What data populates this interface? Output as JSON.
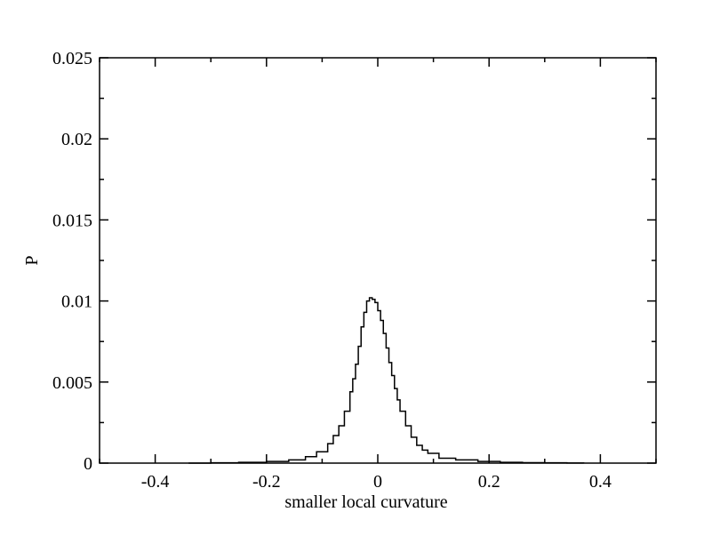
{
  "chart_data": {
    "type": "line",
    "title": "",
    "xlabel": "smaller local curvature",
    "ylabel": "P",
    "xlim": [
      -0.5,
      0.5
    ],
    "ylim": [
      0,
      0.025
    ],
    "x_ticks": [
      "-0.4",
      "-0.2",
      "0",
      "0.2",
      "0.4"
    ],
    "x_tick_values": [
      -0.4,
      -0.2,
      0,
      0.2,
      0.4
    ],
    "y_ticks": [
      "0",
      "0.005",
      "0.01",
      "0.015",
      "0.02",
      "0.025"
    ],
    "y_tick_values": [
      0,
      0.005,
      0.01,
      0.015,
      0.02,
      0.025
    ],
    "grid": false,
    "legend": "none",
    "series": [
      {
        "color": "#000000",
        "x": [
          -0.34,
          -0.3,
          -0.25,
          -0.2,
          -0.16,
          -0.13,
          -0.11,
          -0.09,
          -0.08,
          -0.07,
          -0.06,
          -0.05,
          -0.045,
          -0.04,
          -0.035,
          -0.03,
          -0.025,
          -0.02,
          -0.015,
          -0.01,
          -0.005,
          0,
          0.005,
          0.01,
          0.015,
          0.02,
          0.025,
          0.03,
          0.035,
          0.04,
          0.05,
          0.06,
          0.07,
          0.08,
          0.09,
          0.11,
          0.14,
          0.18,
          0.22,
          0.26,
          0.3,
          0.34,
          0.37
        ],
        "y": [
          0.0,
          2e-05,
          5e-05,
          0.0001,
          0.0002,
          0.0004,
          0.0007,
          0.0012,
          0.0017,
          0.0023,
          0.0032,
          0.0044,
          0.0052,
          0.0061,
          0.0072,
          0.0084,
          0.0093,
          0.01,
          0.0102,
          0.0101,
          0.0099,
          0.0094,
          0.0088,
          0.008,
          0.0071,
          0.0062,
          0.0054,
          0.0046,
          0.0039,
          0.0032,
          0.0023,
          0.0016,
          0.0011,
          0.0008,
          0.0006,
          0.0003,
          0.0002,
          0.0001,
          5e-05,
          3e-05,
          2e-05,
          1e-05,
          0.0
        ]
      }
    ]
  }
}
